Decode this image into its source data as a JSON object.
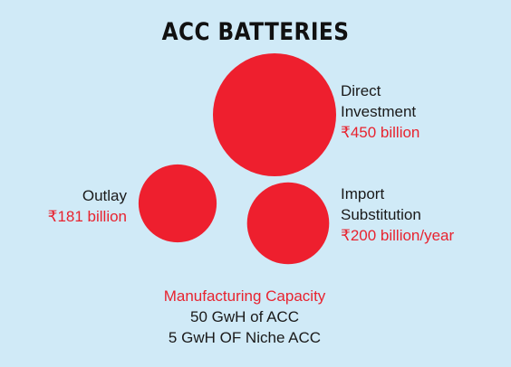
{
  "colors": {
    "background": "#d0eaf7",
    "bubble": "#ee1f2e",
    "value_text": "#e8232f"
  },
  "chart_data": {
    "type": "bubble",
    "title": "ACC BATTERIES",
    "unit": "₹ billion",
    "bubbles": [
      {
        "key": "direct",
        "label": [
          "Direct",
          "Investment"
        ],
        "value": 450,
        "value_label": "₹450 billion"
      },
      {
        "key": "outlay",
        "label": [
          "Outlay"
        ],
        "value": 181,
        "value_label": "₹181 billion"
      },
      {
        "key": "import",
        "label": [
          "Import",
          "Substitution"
        ],
        "value": 200,
        "value_label": "₹200 billion/year"
      }
    ],
    "footer": {
      "heading": "Manufacturing Capacity",
      "lines": [
        "50 GwH of ACC",
        "5 GwH OF Niche ACC"
      ]
    }
  }
}
